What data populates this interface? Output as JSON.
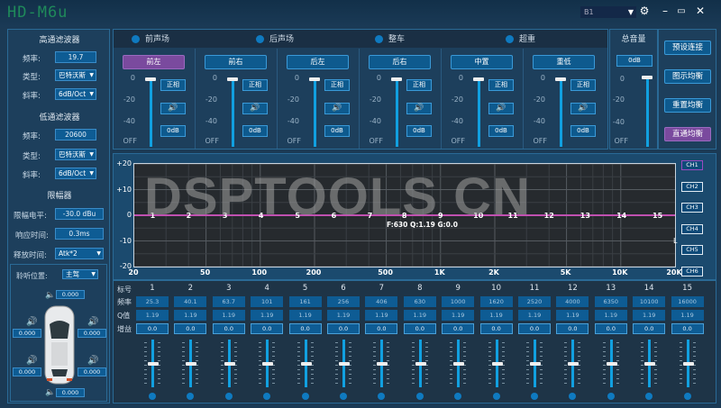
{
  "app": {
    "title": "HD-M6u",
    "preset": "B1",
    "icons": [
      "gear-icon",
      "minimize-icon",
      "maximize-icon",
      "close-icon"
    ]
  },
  "left": {
    "hpf": {
      "title": "高通滤波器",
      "freq_label": "频率:",
      "freq": "19.7",
      "type_label": "类型:",
      "type": "巴特沃斯",
      "slope_label": "斜率:",
      "slope": "6dB/Oct"
    },
    "lpf": {
      "title": "低通滤波器",
      "freq_label": "频率:",
      "freq": "20600",
      "type_label": "类型:",
      "type": "巴特沃斯",
      "slope_label": "斜率:",
      "slope": "6dB/Oct"
    },
    "limiter": {
      "title": "限幅器",
      "level_label": "限幅电平:",
      "level": "-30.0 dBu",
      "attack_label": "响应时间:",
      "attack": "0.3ms",
      "release_label": "释放时间:",
      "release": "Atk*2"
    },
    "listen": {
      "label": "聆听位置:",
      "value": "主驾",
      "top": "0.000",
      "front_left": "0.000",
      "front_right": "0.000",
      "rear_left": "0.000",
      "rear_right": "0.000",
      "bottom": "0.000"
    }
  },
  "groups": [
    "前声场",
    "后声场",
    "整车",
    "超重"
  ],
  "channels": [
    {
      "name": "前左",
      "phase": "正相",
      "gain": "0dB",
      "level": 0
    },
    {
      "name": "前右",
      "phase": "正相",
      "gain": "0dB",
      "level": 0
    },
    {
      "name": "后左",
      "phase": "正相",
      "gain": "0dB",
      "level": 0
    },
    {
      "name": "后右",
      "phase": "正相",
      "gain": "0dB",
      "level": 0
    },
    {
      "name": "中置",
      "phase": "正相",
      "gain": "0dB",
      "level": 0
    },
    {
      "name": "重低",
      "phase": "正相",
      "gain": "0dB",
      "level": 0
    }
  ],
  "scale": [
    "0",
    "-20",
    "-40",
    "OFF"
  ],
  "master": {
    "title": "总音量",
    "value": "0dB",
    "level": 0
  },
  "right_buttons": [
    "预设连接",
    "图示均衡",
    "重置均衡",
    "直通均衡"
  ],
  "active_button": 3,
  "graph": {
    "watermark": "DSPTOOLS CN",
    "y_ticks": [
      "+20",
      "+10",
      "0",
      "-10",
      "-20"
    ],
    "x_ticks": [
      [
        "20",
        20
      ],
      [
        "50",
        50
      ],
      [
        "100",
        100
      ],
      [
        "200",
        200
      ],
      [
        "500",
        500
      ],
      [
        "1K",
        1000
      ],
      [
        "2K",
        2000
      ],
      [
        "5K",
        5000
      ],
      [
        "10K",
        10000
      ],
      [
        "20K",
        20000
      ]
    ],
    "info": "F:630 Q:1.19 G:0.0",
    "side_mark": "L",
    "channel_buttons": [
      "CH1",
      "CH2",
      "CH3",
      "CH4",
      "CH5",
      "CH6"
    ],
    "active_channel": 0,
    "curve_color": "#c050b0"
  },
  "table": {
    "headers": {
      "index": "标号",
      "freq": "频率",
      "q": "Q值",
      "gain": "增益"
    },
    "bands": [
      {
        "n": "1",
        "f": "25.3",
        "q": "1.19",
        "g": "0.0"
      },
      {
        "n": "2",
        "f": "40.1",
        "q": "1.19",
        "g": "0.0"
      },
      {
        "n": "3",
        "f": "63.7",
        "q": "1.19",
        "g": "0.0"
      },
      {
        "n": "4",
        "f": "101",
        "q": "1.19",
        "g": "0.0"
      },
      {
        "n": "5",
        "f": "161",
        "q": "1.19",
        "g": "0.0"
      },
      {
        "n": "6",
        "f": "256",
        "q": "1.19",
        "g": "0.0"
      },
      {
        "n": "7",
        "f": "406",
        "q": "1.19",
        "g": "0.0"
      },
      {
        "n": "8",
        "f": "630",
        "q": "1.19",
        "g": "0.0"
      },
      {
        "n": "9",
        "f": "1000",
        "q": "1.19",
        "g": "0.0"
      },
      {
        "n": "10",
        "f": "1620",
        "q": "1.19",
        "g": "0.0"
      },
      {
        "n": "11",
        "f": "2520",
        "q": "1.19",
        "g": "0.0"
      },
      {
        "n": "12",
        "f": "4000",
        "q": "1.19",
        "g": "0.0"
      },
      {
        "n": "13",
        "f": "6350",
        "q": "1.19",
        "g": "0.0"
      },
      {
        "n": "14",
        "f": "10100",
        "q": "1.19",
        "g": "0.0"
      },
      {
        "n": "15",
        "f": "16000",
        "q": "1.19",
        "g": "0.0"
      }
    ]
  }
}
